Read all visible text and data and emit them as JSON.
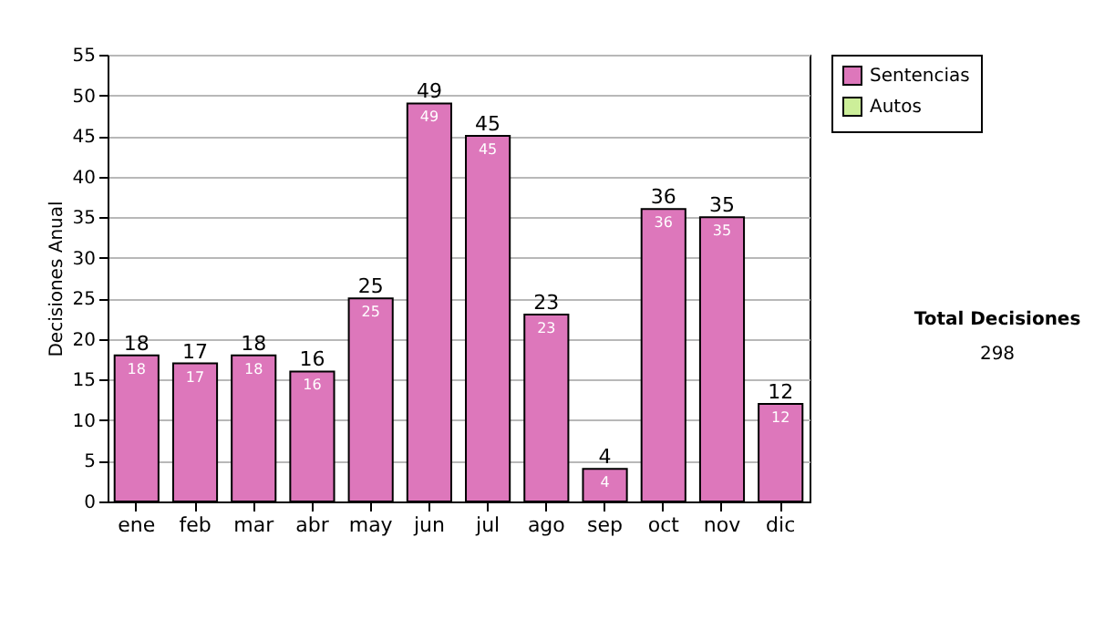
{
  "chart_data": {
    "type": "bar",
    "ylabel": "Decisiones Anual",
    "categories": [
      "ene",
      "feb",
      "mar",
      "abr",
      "may",
      "jun",
      "jul",
      "ago",
      "sep",
      "oct",
      "nov",
      "dic"
    ],
    "series": [
      {
        "name": "Sentencias",
        "color": "#dd77bb",
        "values": [
          18,
          17,
          18,
          16,
          25,
          49,
          45,
          23,
          4,
          36,
          35,
          12
        ],
        "value_labels": [
          "18",
          "17",
          "18",
          "16",
          "25",
          "49",
          "45",
          "23",
          "4",
          "36",
          "35",
          "12"
        ]
      },
      {
        "name": "Autos",
        "color": "#ccee99",
        "values": [
          0,
          0,
          0,
          0,
          0,
          0,
          0,
          0,
          0,
          0,
          0,
          0
        ]
      }
    ],
    "stacked": true,
    "totals": [
      "18",
      "17",
      "18",
      "16",
      "25",
      "49",
      "45",
      "23",
      "4",
      "36",
      "35",
      "12"
    ],
    "ylim": [
      0,
      55
    ],
    "yticks": [
      0,
      5,
      10,
      15,
      20,
      25,
      30,
      35,
      40,
      45,
      50,
      55
    ],
    "grid": "y",
    "legend": "right",
    "annotations": [
      "Total Decisiones",
      "298"
    ]
  }
}
